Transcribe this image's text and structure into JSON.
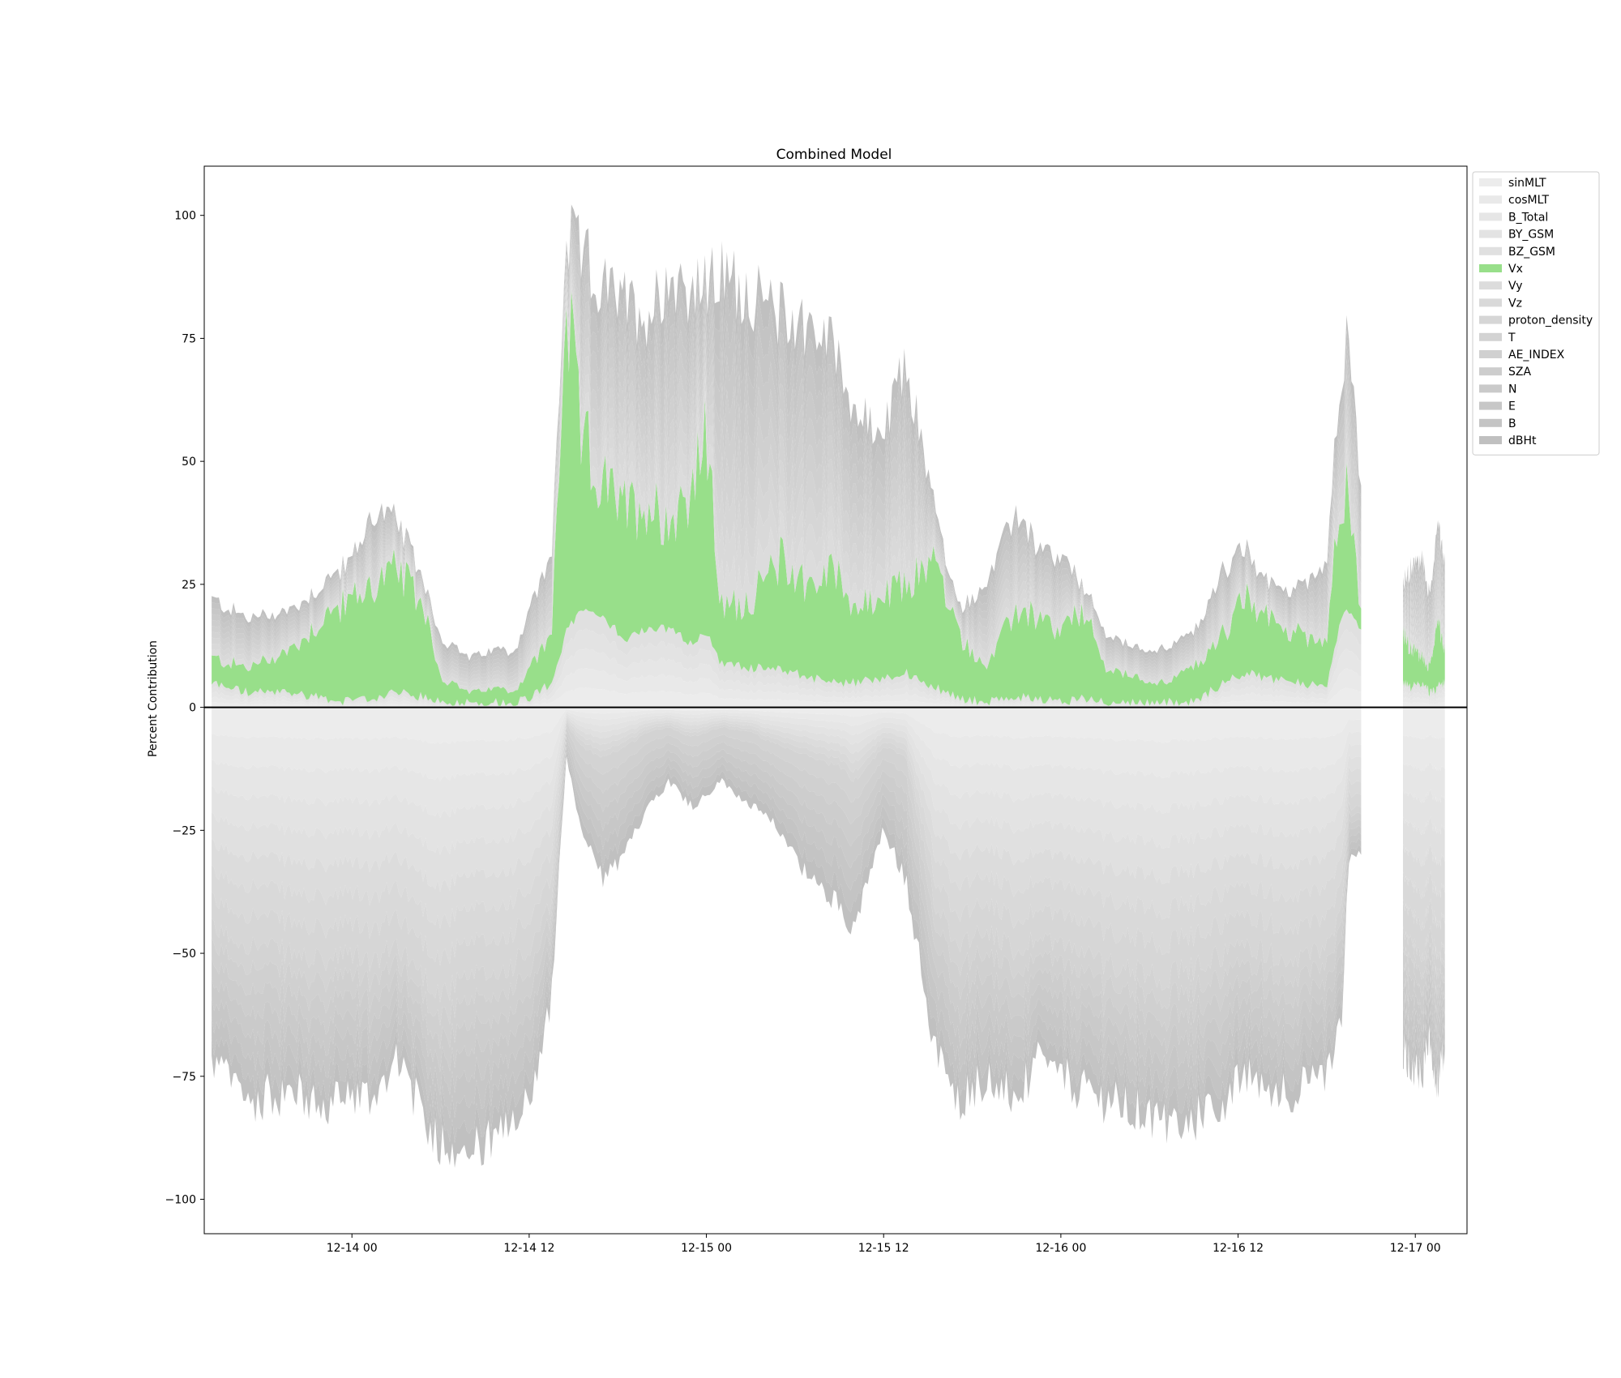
{
  "chart_data": {
    "type": "area",
    "title": "Combined Model",
    "xlabel": "",
    "ylabel": "Percent Contribution",
    "x_range": [
      "2021-12-13 14:00",
      "2021-12-17 03:30"
    ],
    "ylim": [
      -107,
      110
    ],
    "x_ticks": [
      {
        "value": "2021-12-14 00:00",
        "label": "12-14 00"
      },
      {
        "value": "2021-12-14 12:00",
        "label": "12-14 12"
      },
      {
        "value": "2021-12-15 00:00",
        "label": "12-15 00"
      },
      {
        "value": "2021-12-15 12:00",
        "label": "12-15 12"
      },
      {
        "value": "2021-12-16 00:00",
        "label": "12-16 00"
      },
      {
        "value": "2021-12-16 12:00",
        "label": "12-16 12"
      },
      {
        "value": "2021-12-17 00:00",
        "label": "12-17 00"
      }
    ],
    "y_ticks": [
      -100,
      -75,
      -50,
      -25,
      0,
      25,
      50,
      75,
      100
    ],
    "legend_position": "outside upper right",
    "grid": false,
    "zero_line": true,
    "highlight_color": "#98df8a",
    "base_color": "#c0c0c0",
    "series": [
      {
        "name": "sinMLT",
        "color": "#ececec"
      },
      {
        "name": "cosMLT",
        "color": "#e9e9e9"
      },
      {
        "name": "B_Total",
        "color": "#e6e6e6"
      },
      {
        "name": "BY_GSM",
        "color": "#e3e3e3"
      },
      {
        "name": "BZ_GSM",
        "color": "#e0e0e0"
      },
      {
        "name": "Vx",
        "color": "#98df8a"
      },
      {
        "name": "Vy",
        "color": "#dcdcdc"
      },
      {
        "name": "Vz",
        "color": "#d9d9d9"
      },
      {
        "name": "proton_density",
        "color": "#d6d6d6"
      },
      {
        "name": "T",
        "color": "#d3d3d3"
      },
      {
        "name": "AE_INDEX",
        "color": "#d0d0d0"
      },
      {
        "name": "SZA",
        "color": "#cdcdcd"
      },
      {
        "name": "N",
        "color": "#cacaca"
      },
      {
        "name": "E",
        "color": "#c7c7c7"
      },
      {
        "name": "B",
        "color": "#c4c4c4"
      },
      {
        "name": "dBHt",
        "color": "#c0c0c0"
      }
    ],
    "segments": [
      {
        "start": "2021-12-13 14:30",
        "end": "2021-12-16 20:20"
      },
      {
        "start": "2021-12-16 23:10",
        "end": "2021-12-17 02:00"
      }
    ],
    "envelope": {
      "time": [
        "2021-12-13 14:30",
        "2021-12-13 17:00",
        "2021-12-13 20:00",
        "2021-12-13 22:00",
        "2021-12-14 00:00",
        "2021-12-14 01:30",
        "2021-12-14 03:00",
        "2021-12-14 05:00",
        "2021-12-14 06:00",
        "2021-12-14 08:00",
        "2021-12-14 10:00",
        "2021-12-14 11:00",
        "2021-12-14 12:00",
        "2021-12-14 13:30",
        "2021-12-14 14:30",
        "2021-12-14 15:30",
        "2021-12-14 17:00",
        "2021-12-14 18:30",
        "2021-12-14 20:00",
        "2021-12-14 21:30",
        "2021-12-14 23:00",
        "2021-12-15 00:00",
        "2021-12-15 01:00",
        "2021-12-15 03:00",
        "2021-12-15 05:00",
        "2021-12-15 07:00",
        "2021-12-15 09:00",
        "2021-12-15 10:00",
        "2021-12-15 12:00",
        "2021-12-15 13:30",
        "2021-12-15 15:30",
        "2021-12-15 17:00",
        "2021-12-15 19:00",
        "2021-12-15 21:00",
        "2021-12-15 22:30",
        "2021-12-16 00:00",
        "2021-12-16 01:30",
        "2021-12-16 03:00",
        "2021-12-16 05:00",
        "2021-12-16 07:00",
        "2021-12-16 09:00",
        "2021-12-16 11:00",
        "2021-12-16 12:30",
        "2021-12-16 14:00",
        "2021-12-16 16:00",
        "2021-12-16 18:00",
        "2021-12-16 19:00",
        "2021-12-16 19:30",
        "2021-12-16 20:20",
        "2021-12-16 23:10",
        "2021-12-16 23:40",
        "2021-12-17 00:30",
        "2021-12-17 01:00",
        "2021-12-17 01:30",
        "2021-12-17 02:00"
      ],
      "total_positive": [
        22,
        18,
        20,
        25,
        30,
        40,
        38,
        25,
        14,
        10,
        12,
        11,
        20,
        30,
        95,
        92,
        85,
        82,
        80,
        88,
        85,
        85,
        88,
        84,
        80,
        78,
        72,
        60,
        55,
        70,
        40,
        20,
        25,
        40,
        32,
        30,
        25,
        15,
        12,
        12,
        15,
        28,
        32,
        25,
        24,
        30,
        70,
        75,
        45,
        25,
        28,
        30,
        22,
        38,
        30
      ],
      "vx_top": [
        10,
        8,
        12,
        18,
        22,
        25,
        28,
        20,
        6,
        3,
        4,
        3,
        8,
        14,
        82,
        55,
        45,
        40,
        42,
        38,
        45,
        55,
        20,
        22,
        30,
        25,
        28,
        20,
        22,
        25,
        30,
        15,
        8,
        20,
        18,
        15,
        20,
        8,
        6,
        5,
        8,
        15,
        22,
        18,
        15,
        14,
        45,
        42,
        20,
        15,
        12,
        10,
        8,
        18,
        12
      ],
      "vx_bottom": [
        5,
        3,
        3,
        2,
        1,
        2,
        3,
        2,
        1,
        1,
        1,
        1,
        2,
        5,
        15,
        20,
        18,
        14,
        16,
        16,
        13,
        15,
        9,
        8,
        8,
        6,
        5,
        5,
        6,
        7,
        4,
        2,
        1,
        2,
        2,
        1,
        2,
        1,
        1,
        1,
        1,
        5,
        7,
        6,
        5,
        4,
        18,
        20,
        16,
        5,
        4,
        5,
        3,
        4,
        5
      ],
      "total_negative": [
        -72,
        -80,
        -78,
        -82,
        -78,
        -80,
        -70,
        -85,
        -88,
        -90,
        -88,
        -85,
        -80,
        -60,
        -10,
        -25,
        -35,
        -30,
        -20,
        -15,
        -20,
        -18,
        -15,
        -20,
        -25,
        -35,
        -40,
        -45,
        -25,
        -35,
        -70,
        -80,
        -75,
        -80,
        -72,
        -75,
        -78,
        -80,
        -82,
        -85,
        -84,
        -80,
        -75,
        -77,
        -78,
        -75,
        -65,
        -30,
        -30,
        -70,
        -72,
        -74,
        -68,
        -76,
        -70
      ],
      "light_band_bottom": [
        -45,
        -48,
        -50,
        -52,
        -50,
        -52,
        -48,
        -55,
        -58,
        -55,
        -54,
        -52,
        -50,
        -40,
        -3,
        -8,
        -10,
        -8,
        -5,
        -4,
        -6,
        -5,
        -4,
        -5,
        -8,
        -10,
        -12,
        -15,
        -8,
        -10,
        -40,
        -48,
        -45,
        -50,
        -46,
        -48,
        -50,
        -52,
        -53,
        -55,
        -53,
        -50,
        -48,
        -50,
        -52,
        -48,
        -42,
        -20,
        -20,
        -45,
        -48,
        -50,
        -46,
        -52,
        -48
      ]
    }
  }
}
